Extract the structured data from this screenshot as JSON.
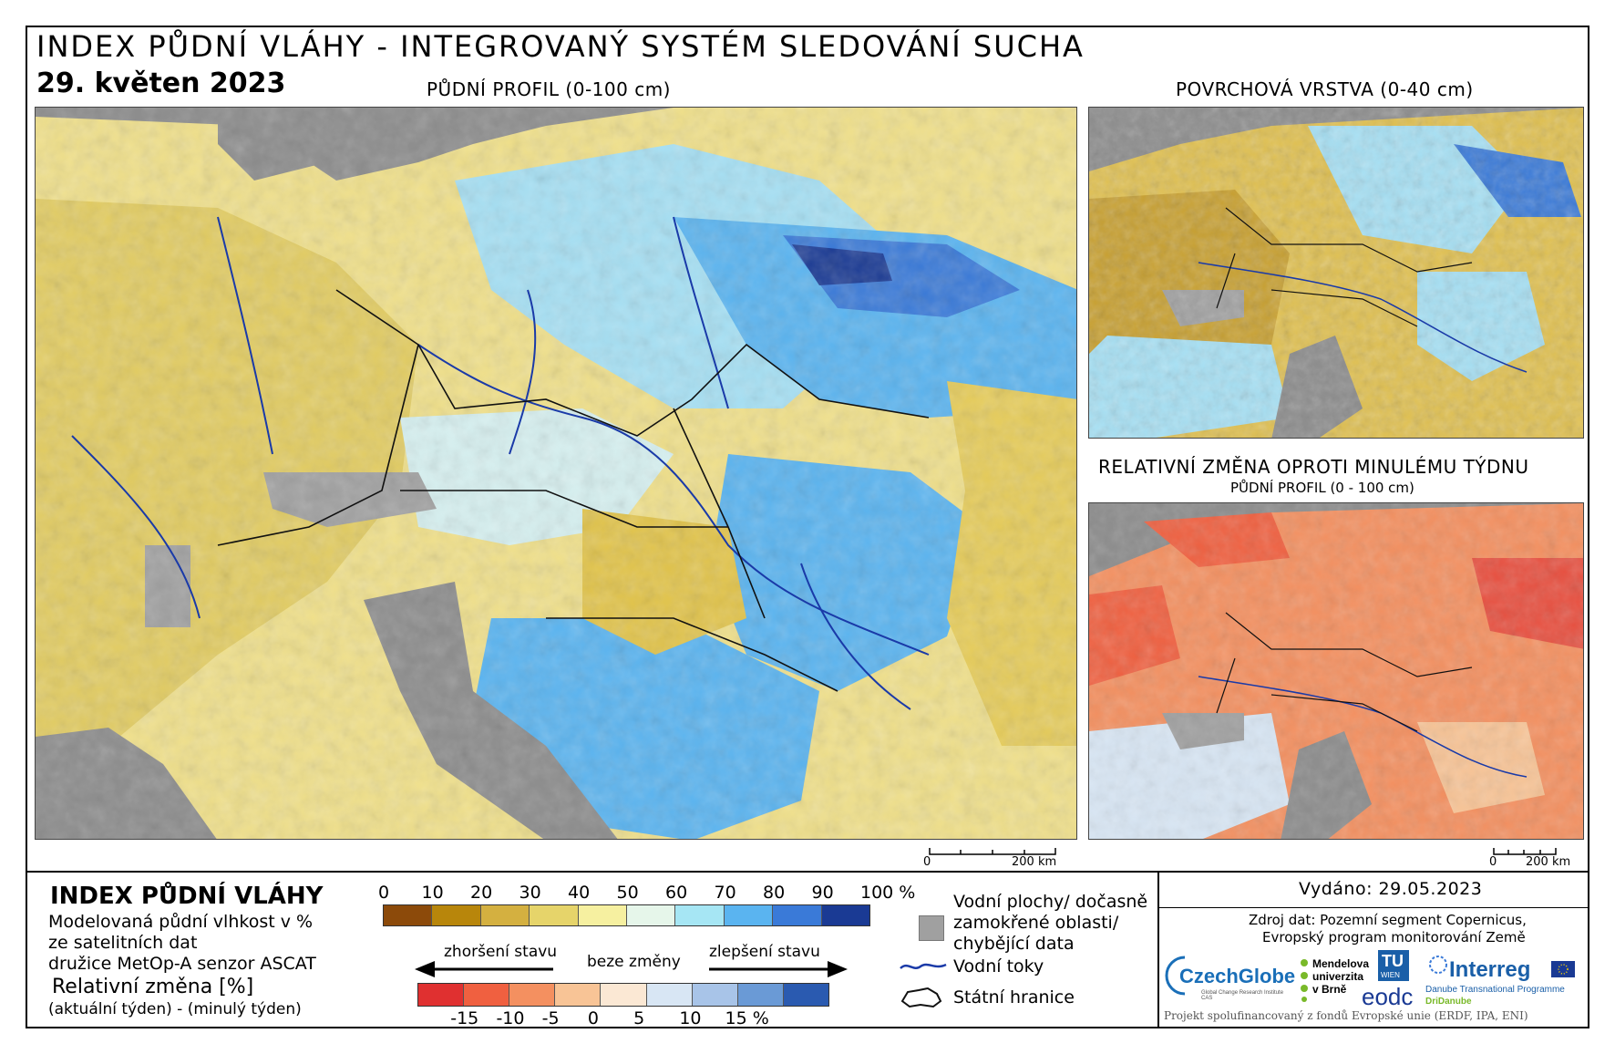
{
  "header": {
    "title": "INDEX PŮDNÍ VLÁHY - INTEGROVANÝ SYSTÉM SLEDOVÁNÍ SUCHA",
    "date": "29. květen 2023"
  },
  "maps": {
    "main_label": "PŮDNÍ PROFIL (0-100 cm)",
    "surface_label": "POVRCHOVÁ VRSTVA (0-40 cm)",
    "change_label": "RELATIVNÍ ZMĚNA OPROTI MINULÉMU TÝDNU",
    "change_sublabel": "PŮDNÍ PROFIL (0 - 100 cm)",
    "scale_main": {
      "zero": "0",
      "end": "200 km"
    },
    "scale_small": {
      "zero": "0",
      "end": "200 km"
    }
  },
  "legend": {
    "title": "INDEX PŮDNÍ VLÁHY",
    "desc_line1": "Modelovaná půdní vlhkost v %",
    "desc_line2": "ze satelitních dat",
    "desc_line3": "družice MetOp-A senzor ASCAT",
    "rel_title": "Relativní změna [%]",
    "rel_desc": "(aktuální týden) - (minulý týden)",
    "moisture_ticks": [
      "0",
      "10",
      "20",
      "30",
      "40",
      "50",
      "60",
      "70",
      "80",
      "90",
      "100 %"
    ],
    "moisture_colors": [
      "#8c4a0a",
      "#b8860b",
      "#d4b040",
      "#e6d46a",
      "#f6f0a0",
      "#e6f6ea",
      "#a6e6f4",
      "#5ab4f0",
      "#3a7ad8",
      "#1a3a94"
    ],
    "worse_label": "zhoršení stavu",
    "nochange_label": "beze změny",
    "better_label": "zlepšení stavu",
    "change_ticks": [
      "-15",
      "-10",
      "-5",
      "0",
      "5",
      "10",
      "15 %"
    ],
    "change_colors": [
      "#e03030",
      "#f06040",
      "#f49060",
      "#f8c496",
      "#fbe8d4",
      "#d8e6f4",
      "#a8c4e8",
      "#6a9ad6",
      "#2a5ab0"
    ],
    "items": {
      "water_line1": "Vodní plochy/ dočasně",
      "water_line2": "zamokřené oblasti/",
      "water_line3": "chybějící data",
      "rivers": "Vodní toky",
      "borders": "Státní hranice"
    }
  },
  "footer": {
    "issued": "Vydáno: 29.05.2023",
    "source_line1": "Zdroj dat: Pozemní segment Copernicus,",
    "source_line2": "Evropský program monitorování Země",
    "partners": {
      "czechglobe": "CzechGlobe",
      "czechglobe_sub": "Global Change Research Institute CAS",
      "mendel_line1": "Mendelova",
      "mendel_line2": "univerzita",
      "mendel_line3": "v Brně",
      "tu": "TU",
      "tu_sub": "WIEN",
      "eodc": "eodc",
      "interreg": "Interreg",
      "interreg_sub1": "Danube Transnational Programme",
      "interreg_sub2": "DriDanube"
    },
    "funding": "Projekt spolufinancovaný z fondů Evropské unie (ERDF, IPA, ENI)"
  },
  "colors": {
    "nodata": "#a0a0a0",
    "outside": "#8c8c8c",
    "river": "#1a3aa8",
    "border": "#111111"
  }
}
